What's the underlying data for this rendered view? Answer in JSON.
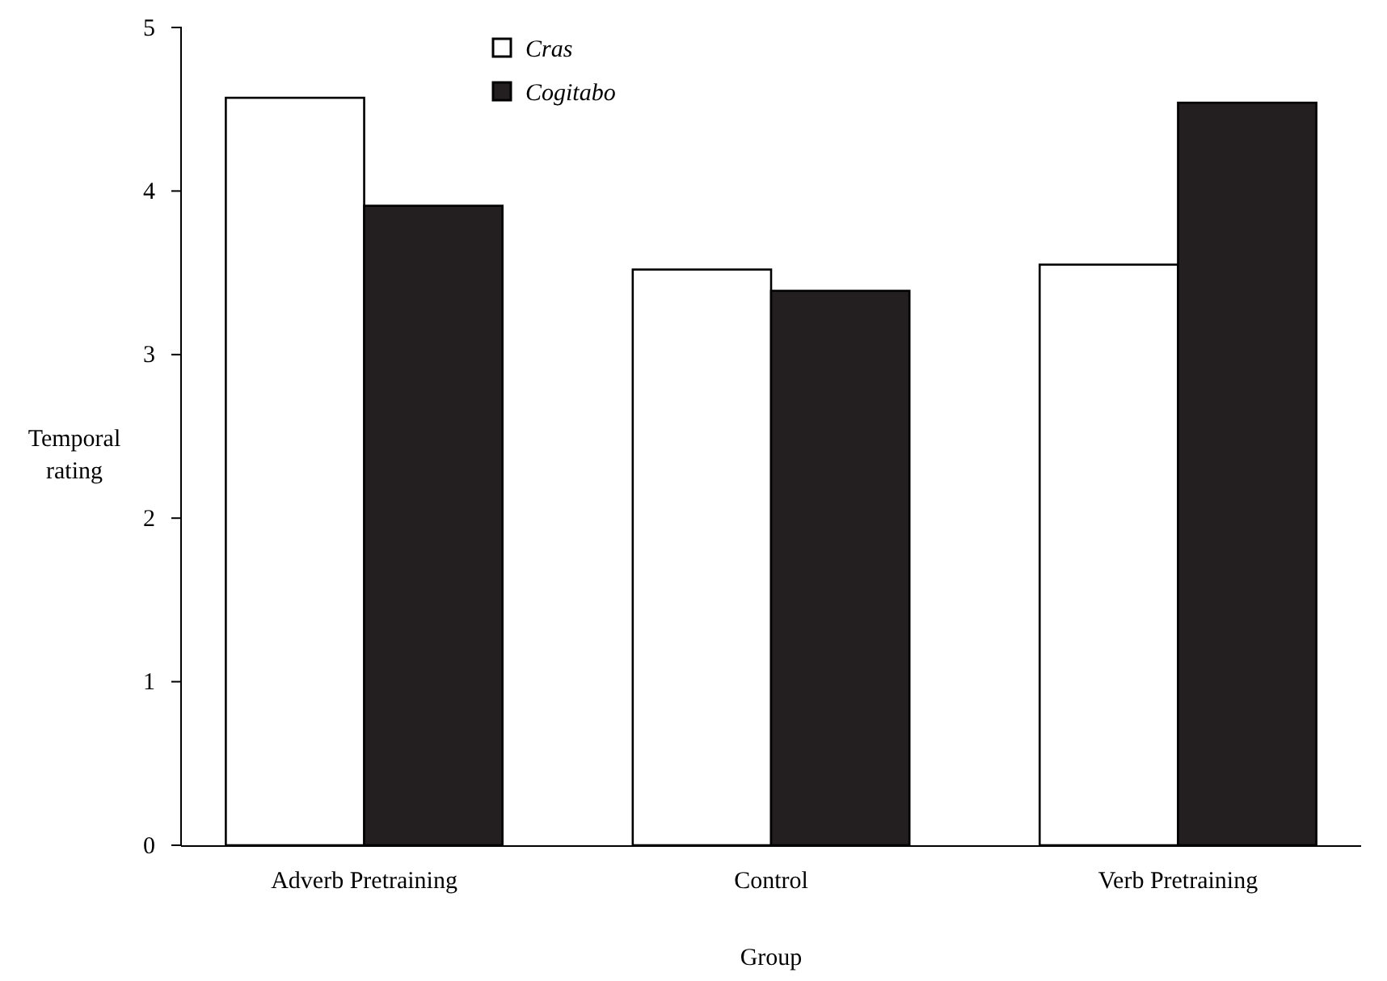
{
  "chart_data": {
    "type": "bar",
    "xlabel": "Group",
    "ylabel": "Temporal rating",
    "categories": [
      "Adverb Pretraining",
      "Control",
      "Verb Pretraining"
    ],
    "series": [
      {
        "name": "Cras",
        "color": "#ffffff",
        "values": [
          4.57,
          3.52,
          3.55
        ]
      },
      {
        "name": "Cogitabo",
        "color": "#231f20",
        "values": [
          3.91,
          3.39,
          4.54
        ]
      }
    ],
    "ylim": [
      0,
      5
    ],
    "yticks": [
      0,
      1,
      2,
      3,
      4,
      5
    ],
    "grid": false,
    "legend": "top left"
  }
}
